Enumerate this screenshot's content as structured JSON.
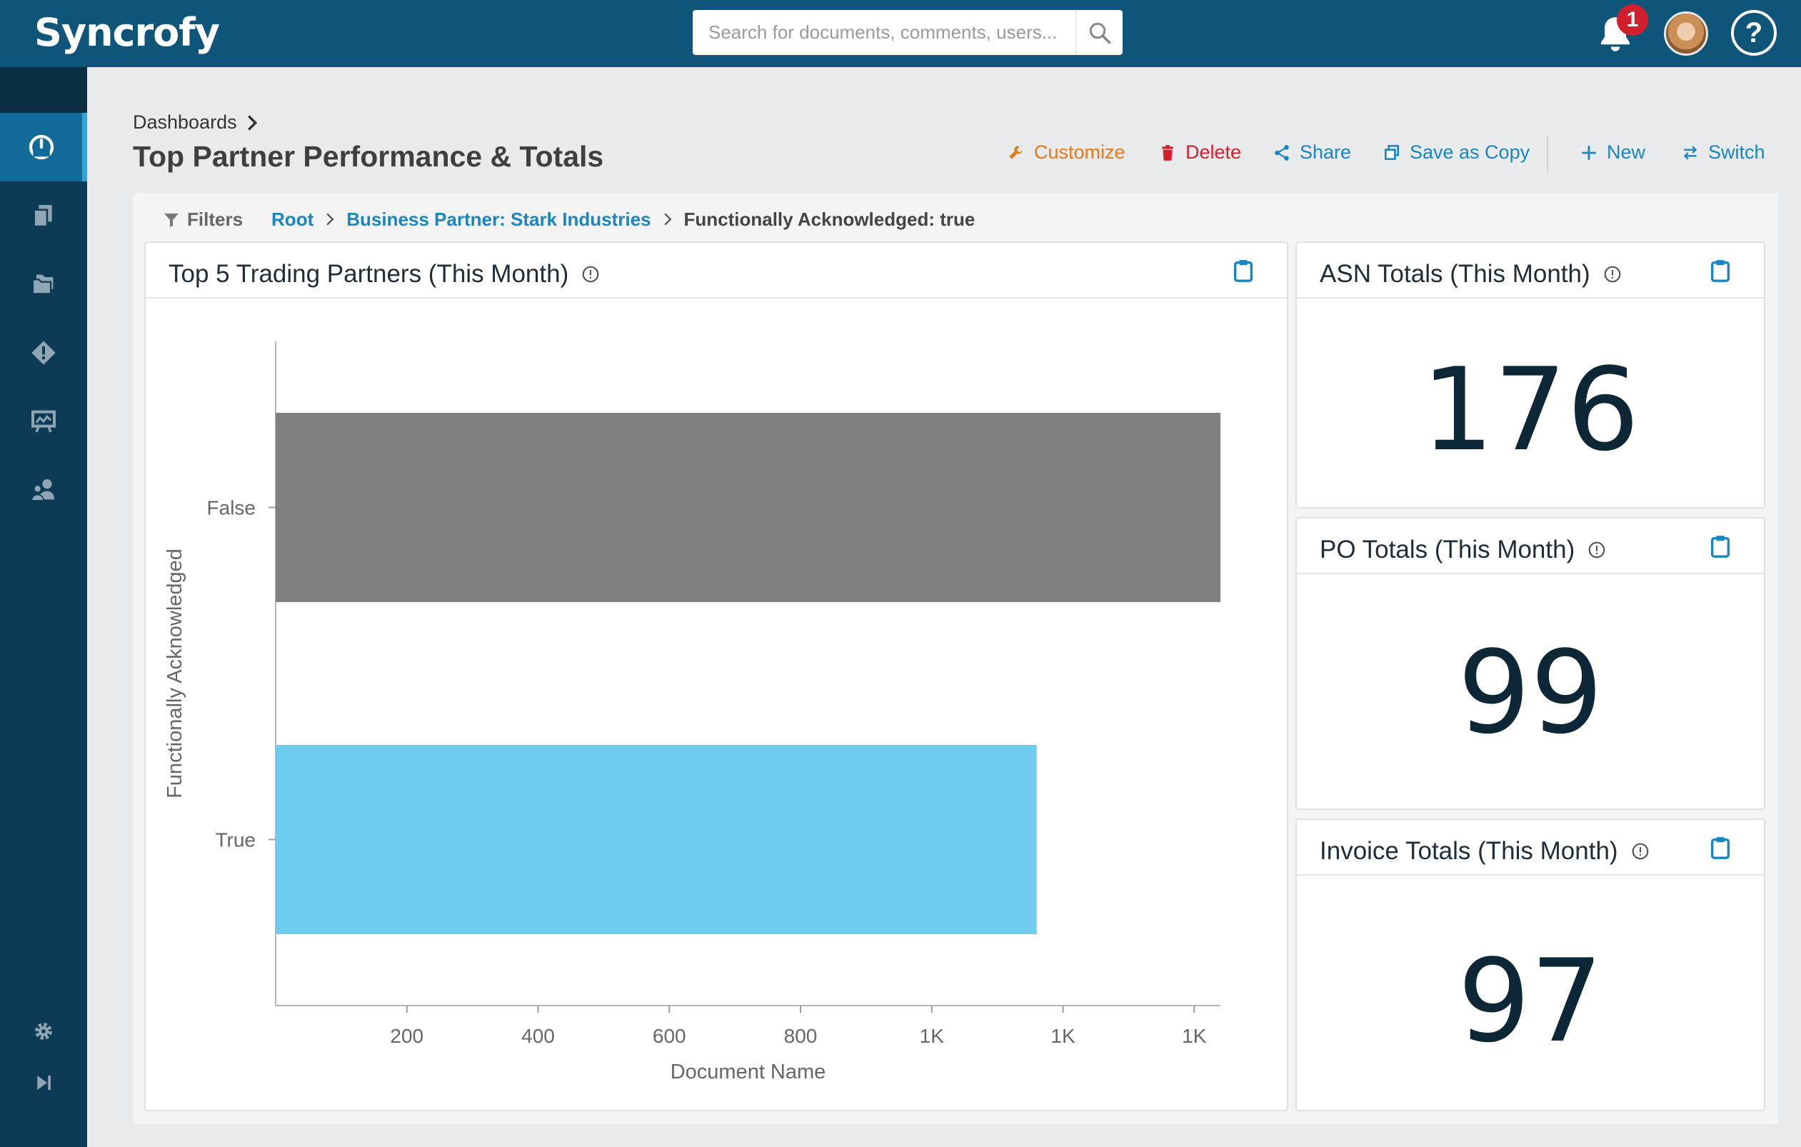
{
  "app": {
    "logo": "Syncrofy"
  },
  "search": {
    "placeholder": "Search for documents, comments, users..."
  },
  "notifications": {
    "count": "1"
  },
  "help": {
    "label": "?"
  },
  "breadcrumb": {
    "root": "Dashboards"
  },
  "page": {
    "title": "Top Partner Performance & Totals"
  },
  "toolbar": {
    "customize": "Customize",
    "delete": "Delete",
    "share": "Share",
    "save_as_copy": "Save as Copy",
    "new": "New",
    "switch": "Switch"
  },
  "colors": {
    "customize": "#e07b1a",
    "delete": "#d0202e",
    "share": "#1a86c0",
    "bar_false": "#808080",
    "bar_true": "#6ecdee"
  },
  "filters": {
    "label": "Filters",
    "path": [
      "Root",
      "Business Partner: Stark Industries"
    ],
    "current": "Functionally Acknowledged: true"
  },
  "panels": {
    "trading": {
      "title": "Top 5 Trading Partners (This Month)"
    },
    "asn": {
      "title": "ASN Totals (This Month)",
      "value": "176"
    },
    "po": {
      "title": "PO Totals (This Month)",
      "value": "99"
    },
    "invoice": {
      "title": "Invoice Totals (This Month)",
      "value": "97"
    }
  },
  "chart_data": {
    "type": "bar",
    "orientation": "horizontal",
    "categories": [
      "False",
      "True"
    ],
    "values": [
      1440,
      1160
    ],
    "colors": [
      "#808080",
      "#6ecdee"
    ],
    "xlabel": "Document Name",
    "ylabel": "Functionally Acknowledged",
    "xticks": [
      200,
      400,
      600,
      800,
      1000,
      1200,
      1400
    ],
    "xtick_labels": [
      "200",
      "400",
      "600",
      "800",
      "1K",
      "1K",
      "1K"
    ],
    "xlim": [
      0,
      1440
    ],
    "grid": false,
    "legend": "none"
  }
}
